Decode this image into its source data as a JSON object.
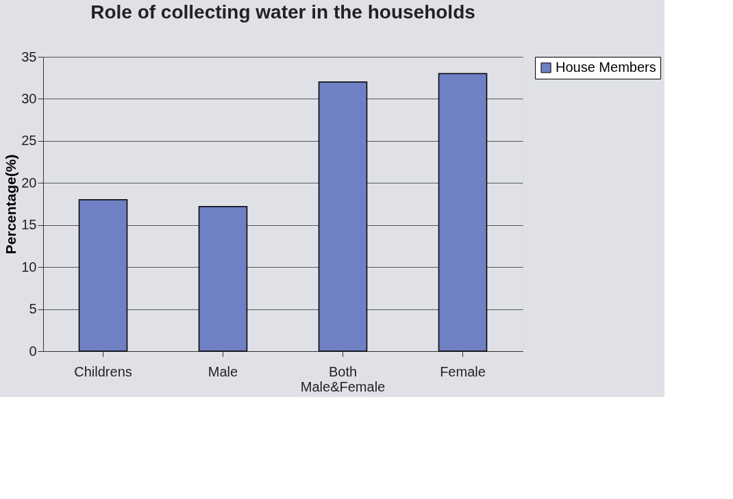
{
  "chart_data": {
    "type": "bar",
    "title": "Role of collecting water in the households",
    "ylabel": "Percentage(%)",
    "categories": [
      "Childrens",
      "Male",
      "Both\nMale&Female",
      "Female"
    ],
    "series": [
      {
        "name": "House Members",
        "color": "#7080c4",
        "values": [
          18,
          17.2,
          32,
          33
        ]
      }
    ],
    "ylim": [
      0,
      35
    ],
    "yticks": [
      0,
      5,
      10,
      15,
      20,
      25,
      30,
      35
    ],
    "grid": "y",
    "legend": "right"
  }
}
